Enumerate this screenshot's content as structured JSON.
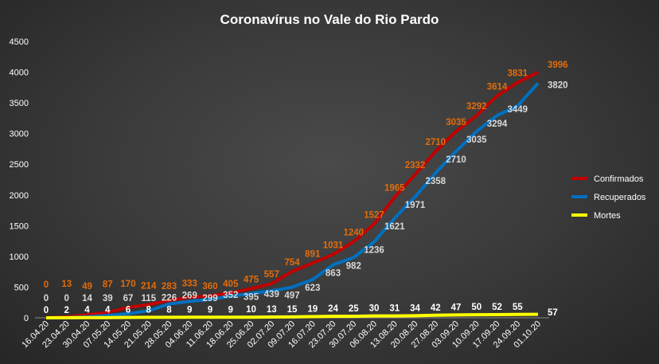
{
  "chart_data": {
    "type": "line",
    "title": "Coronavírus  no Vale do Rio Pardo",
    "ylim": [
      0,
      4500
    ],
    "yticks": [
      0,
      500,
      1000,
      1500,
      2000,
      2500,
      3000,
      3500,
      4000,
      4500
    ],
    "legend_position": "right",
    "categories": [
      "16.04.20",
      "23.04.20",
      "30.04.20",
      "07.05.20",
      "14.05.20",
      "21.05.20",
      "28.05.20",
      "04.06.20",
      "11.06.20",
      "18.06.20",
      "25.06.20",
      "02.07.20",
      "09.07.20",
      "16.07.20",
      "23.07.20",
      "30.07.20",
      "06.08.20",
      "13.08.20",
      "20.08.20",
      "27.08.20",
      "03.09.20",
      "10.09.20",
      "17.09.20",
      "24.09.20",
      "01.10.20"
    ],
    "series": [
      {
        "name": "Confirmados",
        "color": "#c00000",
        "label_color": "#e36c0a",
        "values": [
          0,
          13,
          49,
          87,
          170,
          214,
          283,
          333,
          360,
          405,
          475,
          557,
          754,
          891,
          1031,
          1240,
          1527,
          1965,
          2332,
          2710,
          3035,
          3292,
          3614,
          3831,
          3996
        ]
      },
      {
        "name": "Recuperados",
        "color": "#0070c0",
        "label_color": "#d9d9d9",
        "values": [
          0,
          0,
          14,
          39,
          67,
          115,
          226,
          269,
          299,
          352,
          395,
          439,
          497,
          623,
          863,
          982,
          1236,
          1621,
          1971,
          2358,
          2710,
          3035,
          3294,
          3449,
          3820
        ]
      },
      {
        "name": "Mortes",
        "color": "#ffff00",
        "label_color": "#ffffff",
        "values": [
          0,
          2,
          4,
          4,
          6,
          8,
          8,
          9,
          9,
          9,
          10,
          13,
          15,
          19,
          24,
          25,
          30,
          31,
          34,
          42,
          47,
          50,
          52,
          55,
          57
        ]
      }
    ]
  }
}
